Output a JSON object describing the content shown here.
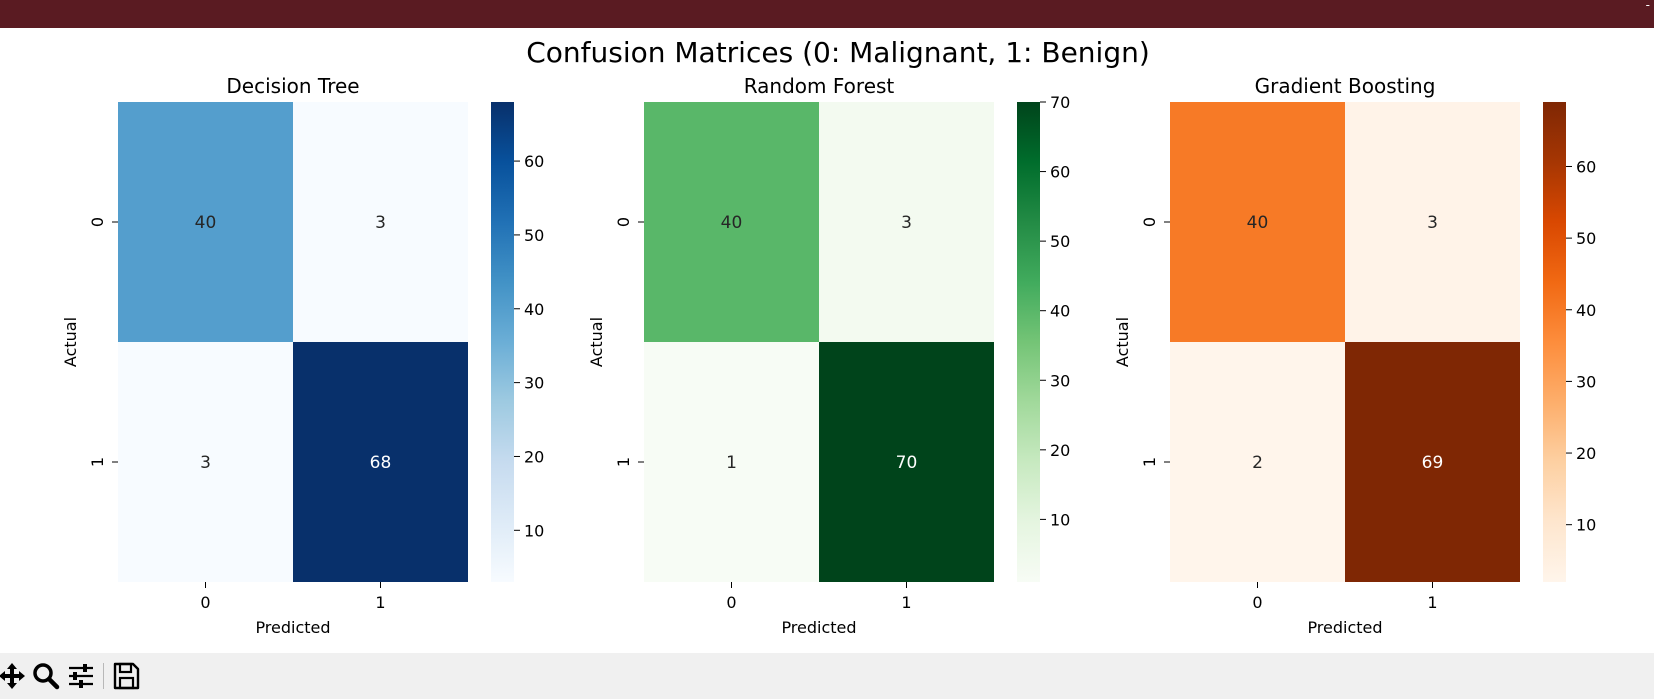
{
  "window": {
    "titlebar_color": "#5a1b22",
    "titlebar_text": "-"
  },
  "chart_data": {
    "title": "Confusion Matrices (0: Malignant, 1: Benign)",
    "charts": [
      {
        "type": "heatmap",
        "title": "Decision Tree",
        "xlabel": "Predicted",
        "ylabel": "Actual",
        "x_categories": [
          "0",
          "1"
        ],
        "y_categories": [
          "0",
          "1"
        ],
        "matrix": [
          [
            40,
            3
          ],
          [
            3,
            68
          ]
        ],
        "colormap": "Blues",
        "colorbar_range": [
          3,
          68
        ],
        "colorbar_ticks": [
          10,
          20,
          30,
          40,
          50,
          60
        ]
      },
      {
        "type": "heatmap",
        "title": "Random Forest",
        "xlabel": "Predicted",
        "ylabel": "Actual",
        "x_categories": [
          "0",
          "1"
        ],
        "y_categories": [
          "0",
          "1"
        ],
        "matrix": [
          [
            40,
            3
          ],
          [
            1,
            70
          ]
        ],
        "colormap": "Greens",
        "colorbar_range": [
          1,
          70
        ],
        "colorbar_ticks": [
          10,
          20,
          30,
          40,
          50,
          60,
          70
        ]
      },
      {
        "type": "heatmap",
        "title": "Gradient Boosting",
        "xlabel": "Predicted",
        "ylabel": "Actual",
        "x_categories": [
          "0",
          "1"
        ],
        "y_categories": [
          "0",
          "1"
        ],
        "matrix": [
          [
            40,
            3
          ],
          [
            2,
            69
          ]
        ],
        "colormap": "Oranges",
        "colorbar_range": [
          2,
          69
        ],
        "colorbar_ticks": [
          10,
          20,
          30,
          40,
          50,
          60
        ]
      }
    ]
  },
  "toolbar": {
    "buttons": [
      {
        "icon": "pan-icon"
      },
      {
        "icon": "zoom-icon"
      },
      {
        "icon": "configure-subplots-icon"
      },
      {
        "icon": "save-icon"
      }
    ]
  }
}
